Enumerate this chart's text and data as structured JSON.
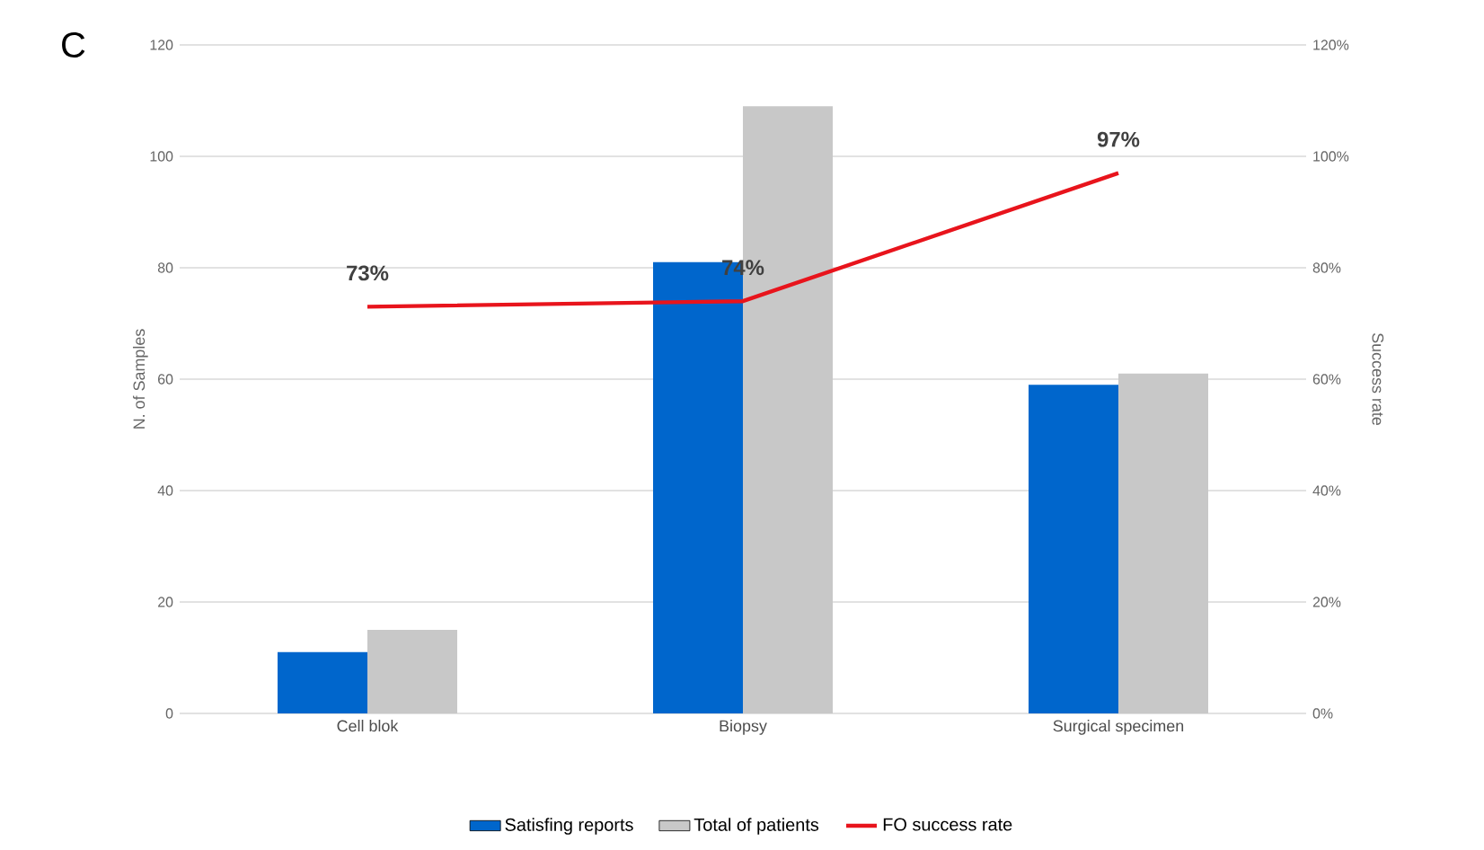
{
  "chart_data": {
    "type": "bar",
    "categories": [
      "Cell blok",
      "Biopsy",
      "Surgical specimen"
    ],
    "ylabel": "N. of Samples",
    "y2label": "Success rate",
    "annotations": [
      "C"
    ],
    "series": [
      {
        "name": "Satisfing reports",
        "color": "#0066cc",
        "values": [
          11,
          81,
          59
        ]
      },
      {
        "name": "Total of patients",
        "color": "#c8c8c8",
        "values": [
          15,
          109,
          61
        ]
      },
      {
        "name": "FO success rate",
        "type": "line",
        "axis": "y2",
        "color": "#e8141c",
        "values": [
          73,
          74,
          97
        ],
        "value_labels": [
          "73%",
          "74%",
          "97%"
        ]
      }
    ],
    "ylim": [
      0,
      120
    ],
    "yticks": [
      0,
      20,
      40,
      60,
      80,
      100,
      120
    ],
    "y2lim": [
      0,
      120
    ],
    "y2ticks": [
      {
        "value": 0,
        "label": "0%"
      },
      {
        "value": 20,
        "label": "20%"
      },
      {
        "value": 40,
        "label": "40%"
      },
      {
        "value": 60,
        "label": "60%"
      },
      {
        "value": 80,
        "label": "80%"
      },
      {
        "value": 100,
        "label": "100%"
      },
      {
        "value": 120,
        "label": "120%"
      }
    ],
    "grid": "y",
    "legend": "bottom"
  }
}
